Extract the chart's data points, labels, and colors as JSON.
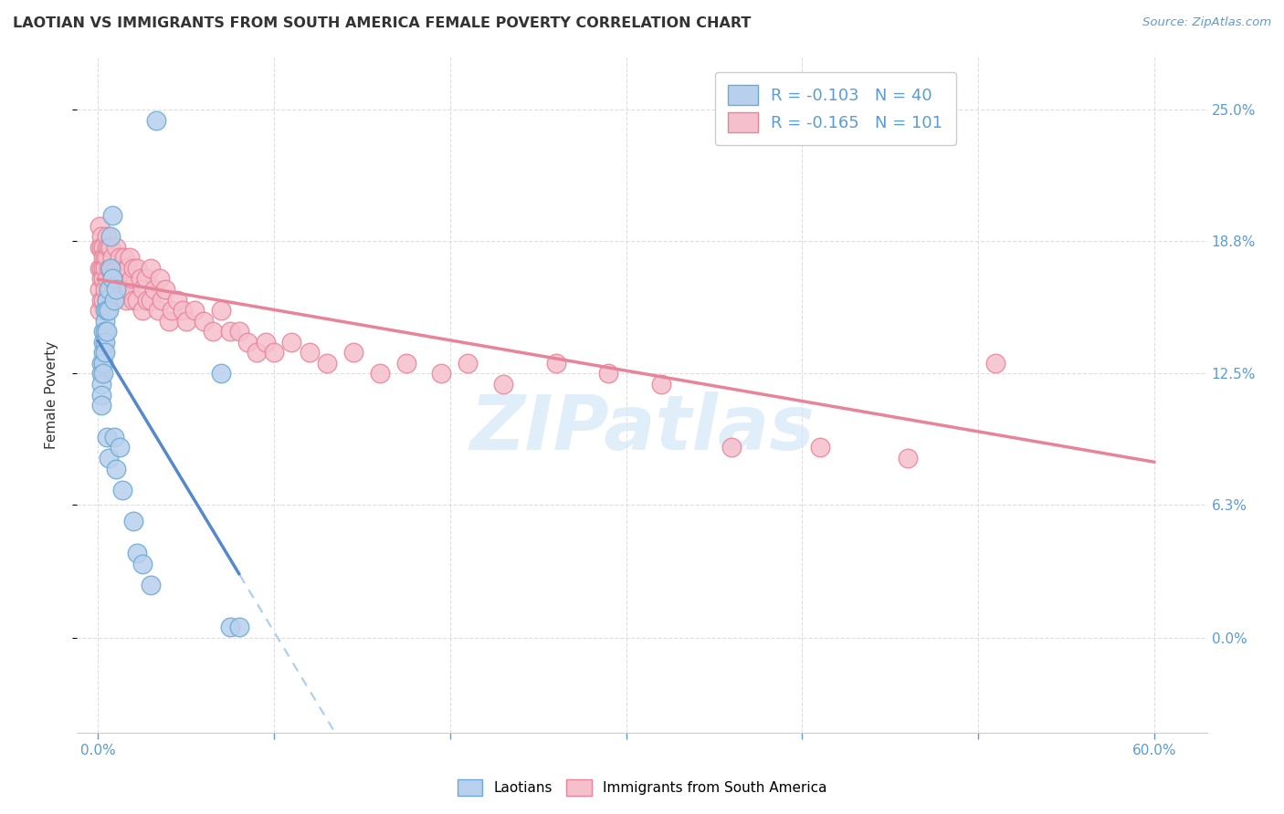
{
  "title": "LAOTIAN VS IMMIGRANTS FROM SOUTH AMERICA FEMALE POVERTY CORRELATION CHART",
  "source": "Source: ZipAtlas.com",
  "ylabel": "Female Poverty",
  "ytick_vals": [
    0.0,
    0.063,
    0.125,
    0.188,
    0.25
  ],
  "ytick_labels": [
    "0.0%",
    "6.3%",
    "12.5%",
    "18.8%",
    "25.0%"
  ],
  "xtick_vals": [
    0.0,
    0.1,
    0.2,
    0.3,
    0.4,
    0.5,
    0.6
  ],
  "xlim": [
    -0.012,
    0.63
  ],
  "ylim": [
    -0.045,
    0.275
  ],
  "legend1_R": "-0.103",
  "legend1_N": "40",
  "legend2_R": "-0.165",
  "legend2_N": "101",
  "laotian_color": "#b8d0ed",
  "sa_color": "#f5bfcc",
  "laotian_edge": "#6aaad4",
  "sa_edge": "#e8849a",
  "trendline_laotian_color": "#5588cc",
  "trendline_sa_color": "#e8849a",
  "trendline_dashed_color": "#aaccee",
  "background_color": "#ffffff",
  "grid_color": "#dddddd",
  "watermark": "ZIPatlas",
  "watermark_color": "#d4e8f8",
  "title_color": "#333333",
  "axis_label_color": "#333333",
  "tick_color": "#5b9bd5",
  "lao_x": [
    0.002,
    0.002,
    0.002,
    0.002,
    0.002,
    0.003,
    0.003,
    0.003,
    0.003,
    0.003,
    0.004,
    0.004,
    0.004,
    0.004,
    0.004,
    0.005,
    0.005,
    0.005,
    0.005,
    0.006,
    0.006,
    0.006,
    0.007,
    0.007,
    0.008,
    0.008,
    0.009,
    0.009,
    0.01,
    0.01,
    0.012,
    0.014,
    0.02,
    0.022,
    0.025,
    0.03,
    0.033,
    0.07,
    0.075,
    0.08
  ],
  "lao_y": [
    0.13,
    0.125,
    0.12,
    0.115,
    0.11,
    0.145,
    0.14,
    0.135,
    0.13,
    0.125,
    0.155,
    0.15,
    0.145,
    0.14,
    0.135,
    0.16,
    0.155,
    0.145,
    0.095,
    0.165,
    0.155,
    0.085,
    0.19,
    0.175,
    0.2,
    0.17,
    0.16,
    0.095,
    0.165,
    0.08,
    0.09,
    0.07,
    0.055,
    0.04,
    0.035,
    0.025,
    0.245,
    0.125,
    0.005,
    0.005
  ],
  "sa_x": [
    0.001,
    0.001,
    0.001,
    0.001,
    0.001,
    0.002,
    0.002,
    0.002,
    0.002,
    0.002,
    0.003,
    0.003,
    0.003,
    0.003,
    0.003,
    0.004,
    0.004,
    0.004,
    0.005,
    0.005,
    0.005,
    0.005,
    0.005,
    0.006,
    0.006,
    0.006,
    0.007,
    0.007,
    0.007,
    0.008,
    0.008,
    0.008,
    0.009,
    0.009,
    0.01,
    0.01,
    0.01,
    0.011,
    0.011,
    0.012,
    0.012,
    0.013,
    0.013,
    0.014,
    0.015,
    0.015,
    0.016,
    0.016,
    0.017,
    0.017,
    0.018,
    0.018,
    0.019,
    0.02,
    0.02,
    0.022,
    0.022,
    0.024,
    0.025,
    0.025,
    0.027,
    0.028,
    0.03,
    0.03,
    0.032,
    0.034,
    0.035,
    0.036,
    0.038,
    0.04,
    0.042,
    0.045,
    0.048,
    0.05,
    0.055,
    0.06,
    0.065,
    0.07,
    0.075,
    0.08,
    0.085,
    0.09,
    0.095,
    0.1,
    0.11,
    0.12,
    0.13,
    0.145,
    0.16,
    0.175,
    0.195,
    0.21,
    0.23,
    0.26,
    0.29,
    0.32,
    0.36,
    0.41,
    0.46,
    0.51,
    0.38
  ],
  "sa_y": [
    0.195,
    0.185,
    0.175,
    0.165,
    0.155,
    0.19,
    0.185,
    0.175,
    0.17,
    0.16,
    0.185,
    0.18,
    0.175,
    0.17,
    0.16,
    0.18,
    0.175,
    0.165,
    0.19,
    0.185,
    0.18,
    0.17,
    0.16,
    0.185,
    0.175,
    0.165,
    0.185,
    0.175,
    0.165,
    0.18,
    0.17,
    0.16,
    0.175,
    0.165,
    0.185,
    0.175,
    0.165,
    0.175,
    0.165,
    0.18,
    0.17,
    0.175,
    0.165,
    0.17,
    0.18,
    0.165,
    0.175,
    0.16,
    0.175,
    0.165,
    0.18,
    0.165,
    0.17,
    0.175,
    0.16,
    0.175,
    0.16,
    0.17,
    0.165,
    0.155,
    0.17,
    0.16,
    0.175,
    0.16,
    0.165,
    0.155,
    0.17,
    0.16,
    0.165,
    0.15,
    0.155,
    0.16,
    0.155,
    0.15,
    0.155,
    0.15,
    0.145,
    0.155,
    0.145,
    0.145,
    0.14,
    0.135,
    0.14,
    0.135,
    0.14,
    0.135,
    0.13,
    0.135,
    0.125,
    0.13,
    0.125,
    0.13,
    0.12,
    0.13,
    0.125,
    0.12,
    0.09,
    0.09,
    0.085,
    0.13,
    0.24
  ]
}
